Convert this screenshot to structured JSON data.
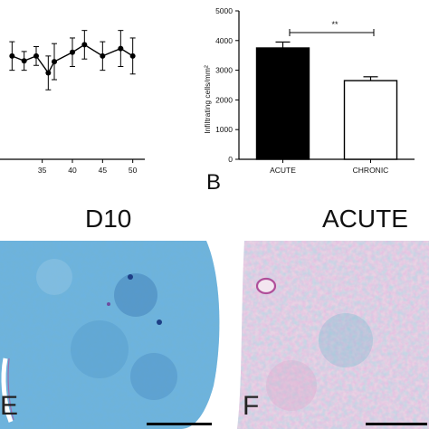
{
  "chart_data": [
    {
      "type": "line",
      "x_ticks": [
        "35",
        "40",
        "45",
        "50"
      ],
      "xlim": [
        28,
        52
      ],
      "ylim": [
        0,
        4000
      ],
      "points": [
        {
          "x": 30,
          "y": 2750,
          "err": 380
        },
        {
          "x": 32,
          "y": 2620,
          "err": 250
        },
        {
          "x": 34,
          "y": 2750,
          "err": 250
        },
        {
          "x": 36,
          "y": 2300,
          "err": 450
        },
        {
          "x": 37,
          "y": 2600,
          "err": 480
        },
        {
          "x": 40,
          "y": 2850,
          "err": 380
        },
        {
          "x": 42,
          "y": 3050,
          "err": 380
        },
        {
          "x": 45,
          "y": 2750,
          "err": 380
        },
        {
          "x": 48,
          "y": 2950,
          "err": 480
        },
        {
          "x": 50,
          "y": 2750,
          "err": 480
        }
      ]
    },
    {
      "type": "bar",
      "categories": [
        "ACUTE",
        "CHRONIC"
      ],
      "values": [
        3750,
        2650
      ],
      "errors": [
        200,
        130
      ],
      "fills": [
        "#000000",
        "#ffffff"
      ],
      "ylabel": "Infiltrating cells/mm²",
      "ylim": [
        0,
        5000
      ],
      "y_ticks": [
        "0",
        "1000",
        "2000",
        "3000",
        "4000",
        "5000"
      ],
      "significance": "**"
    }
  ],
  "panel_letters": {
    "b": "B",
    "e": "E",
    "f": "F"
  },
  "micrograph_titles": {
    "left": "D10",
    "right": "ACUTE"
  },
  "colors": {
    "stain_blue": "#5aa6cf",
    "stain_pink": "#c98bbd"
  }
}
